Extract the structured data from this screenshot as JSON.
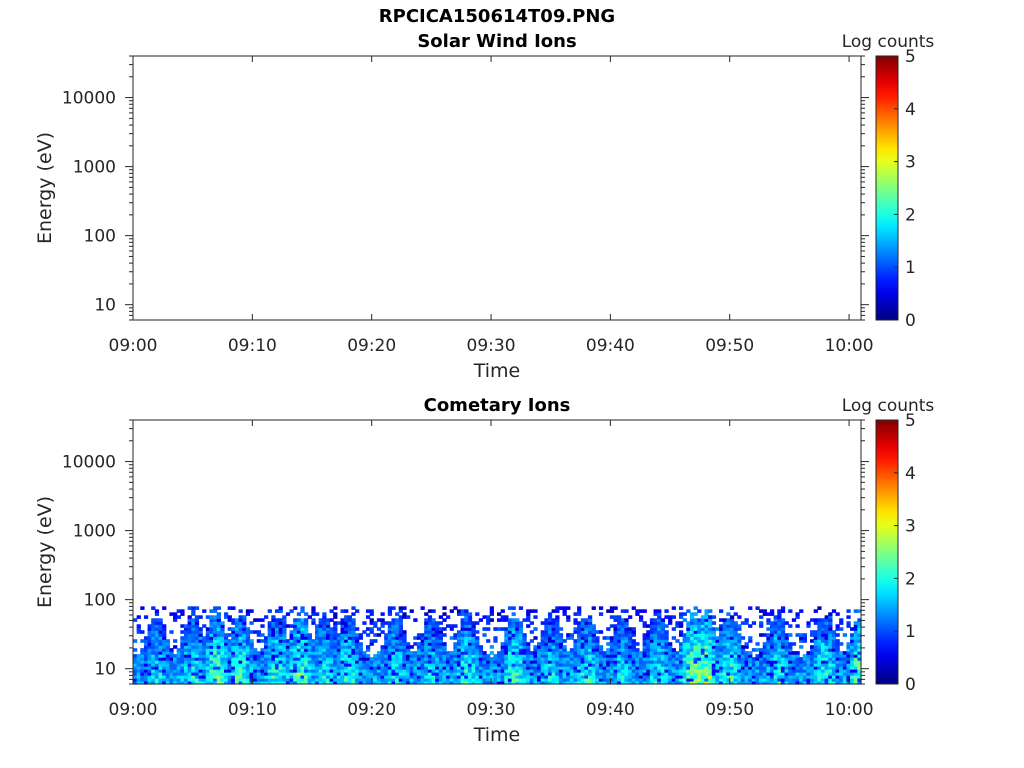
{
  "figure": {
    "title": "RPCICA150614T09.PNG"
  },
  "chart_data": [
    {
      "type": "heatmap",
      "title": "Solar Wind Ions",
      "xlabel": "Time",
      "ylabel": "Energy (eV)",
      "x_ticks": [
        "09:00",
        "09:10",
        "09:20",
        "09:30",
        "09:40",
        "09:50",
        "10:00"
      ],
      "xlim": [
        "09:00",
        "10:01"
      ],
      "y_scale": "log",
      "y_ticks": [
        "10",
        "100",
        "1000",
        "10000"
      ],
      "ylim": [
        6,
        40000
      ],
      "colorbar": {
        "label": "Log counts",
        "ticks": [
          "0",
          "1",
          "2",
          "3",
          "4",
          "5"
        ],
        "range": [
          0,
          5
        ],
        "colormap": "jet"
      },
      "grid": false,
      "values": []
    },
    {
      "type": "heatmap",
      "title": "Cometary Ions",
      "xlabel": "Time",
      "ylabel": "Energy (eV)",
      "x_ticks": [
        "09:00",
        "09:10",
        "09:20",
        "09:30",
        "09:40",
        "09:50",
        "10:00"
      ],
      "xlim": [
        "09:00",
        "10:01"
      ],
      "y_scale": "log",
      "y_ticks": [
        "10",
        "100",
        "1000",
        "10000"
      ],
      "ylim": [
        6,
        40000
      ],
      "colorbar": {
        "label": "Log counts",
        "ticks": [
          "0",
          "1",
          "2",
          "3",
          "4",
          "5"
        ],
        "range": [
          0,
          5
        ],
        "colormap": "jet"
      },
      "grid": false,
      "signal_energy_range_eV": [
        6,
        80
      ],
      "typical_level": 1.7,
      "peak_level": 3.0,
      "bursts": [
        {
          "time": "09:02",
          "level": 2.0
        },
        {
          "time": "09:05",
          "level": 2.2
        },
        {
          "time": "09:07",
          "level": 2.5
        },
        {
          "time": "09:09",
          "level": 2.4
        },
        {
          "time": "09:12",
          "level": 2.3
        },
        {
          "time": "09:14",
          "level": 2.6
        },
        {
          "time": "09:16",
          "level": 2.1
        },
        {
          "time": "09:18",
          "level": 2.2
        },
        {
          "time": "09:22",
          "level": 2.1
        },
        {
          "time": "09:25",
          "level": 2.0
        },
        {
          "time": "09:28",
          "level": 2.3
        },
        {
          "time": "09:32",
          "level": 2.4
        },
        {
          "time": "09:35",
          "level": 2.0
        },
        {
          "time": "09:38",
          "level": 2.2
        },
        {
          "time": "09:41",
          "level": 2.0
        },
        {
          "time": "09:44",
          "level": 2.1
        },
        {
          "time": "09:47",
          "level": 2.8
        },
        {
          "time": "09:48",
          "level": 2.9
        },
        {
          "time": "09:50",
          "level": 2.3
        },
        {
          "time": "09:54",
          "level": 2.2
        },
        {
          "time": "09:58",
          "level": 2.3
        },
        {
          "time": "10:01",
          "level": 2.7
        }
      ]
    }
  ]
}
